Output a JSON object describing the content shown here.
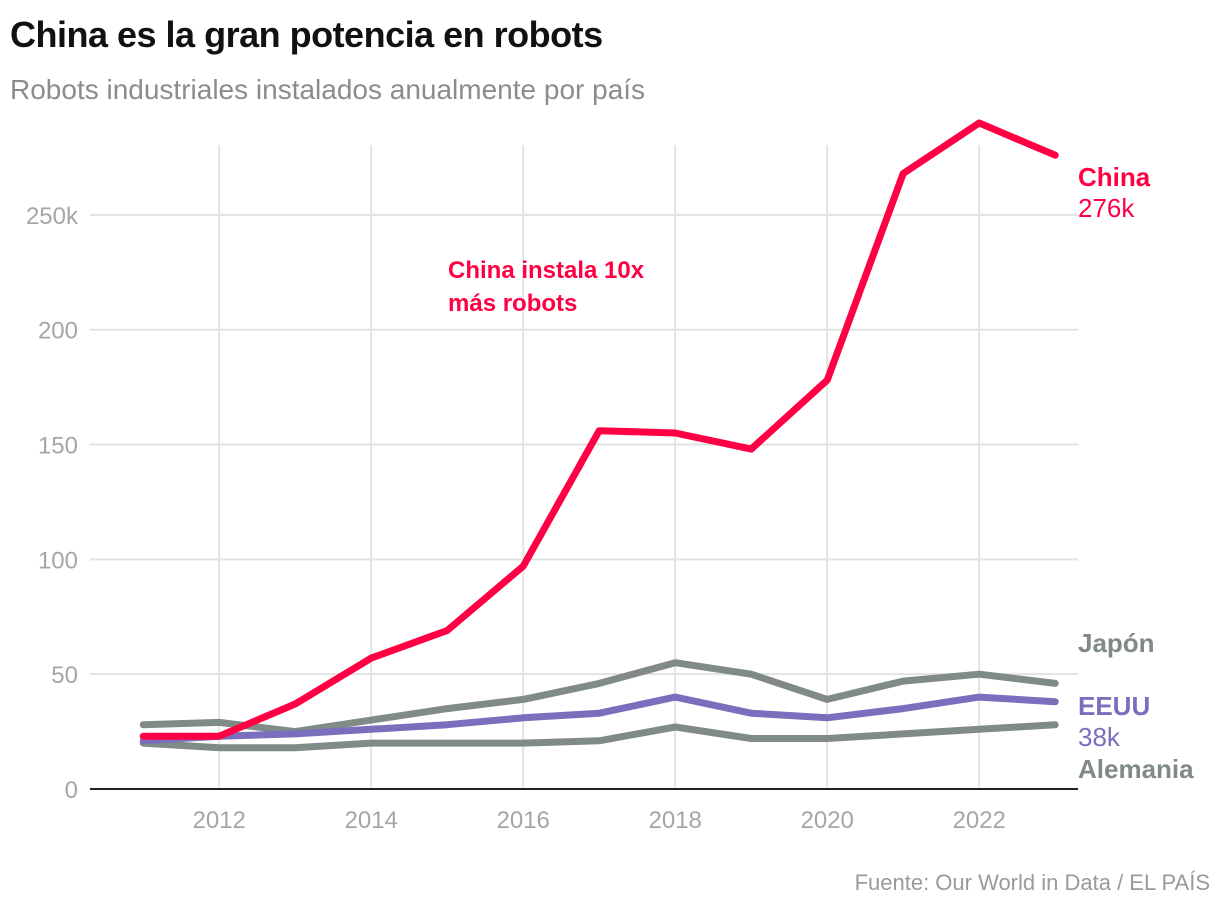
{
  "header": {
    "title": "China es la gran potencia en robots",
    "subtitle": "Robots industriales instalados anualmente por país"
  },
  "footer": {
    "source": "Fuente: Our World in Data / EL PAÍS"
  },
  "annotation": {
    "line1": "China instala 10x",
    "line2": "más robots",
    "color": "#ff0044"
  },
  "chart_data": {
    "type": "line",
    "title": "China es la gran potencia en robots",
    "subtitle": "Robots industriales instalados anualmente por país",
    "xlabel": "",
    "ylabel": "",
    "x": [
      2011,
      2012,
      2013,
      2014,
      2015,
      2016,
      2017,
      2018,
      2019,
      2020,
      2021,
      2022,
      2023
    ],
    "xlim": [
      2010.3,
      2023.3
    ],
    "ylim": [
      0,
      290
    ],
    "x_ticks": [
      2012,
      2014,
      2016,
      2018,
      2020,
      2022
    ],
    "x_tick_labels": [
      "2012",
      "2014",
      "2016",
      "2018",
      "2020",
      "2022"
    ],
    "y_ticks": [
      0,
      50,
      100,
      150,
      200,
      250
    ],
    "y_tick_labels": [
      "0",
      "50",
      "100",
      "150",
      "200",
      "250k"
    ],
    "grid": true,
    "series": [
      {
        "name": "Alemania",
        "color": "#808a86",
        "label_value": "",
        "values": [
          20,
          18,
          18,
          20,
          20,
          20,
          21,
          27,
          22,
          22,
          24,
          26,
          28
        ]
      },
      {
        "name": "Japón",
        "color": "#808a86",
        "label_value": "",
        "values": [
          28,
          29,
          25,
          30,
          35,
          39,
          46,
          55,
          50,
          39,
          47,
          50,
          46
        ]
      },
      {
        "name": "EEUU",
        "color": "#7a6fbc",
        "label_value": "38k",
        "values": [
          21,
          23,
          24,
          26,
          28,
          31,
          33,
          40,
          33,
          31,
          35,
          40,
          38
        ]
      },
      {
        "name": "China",
        "color": "#ff0044",
        "label_value": "276k",
        "values": [
          23,
          23,
          37,
          57,
          69,
          97,
          156,
          155,
          148,
          178,
          268,
          290,
          276
        ]
      }
    ],
    "annotations": [
      {
        "text": "China instala 10x más robots",
        "x": 2015.6,
        "y": 240
      }
    ],
    "legend": "direct labels at right end of lines"
  }
}
